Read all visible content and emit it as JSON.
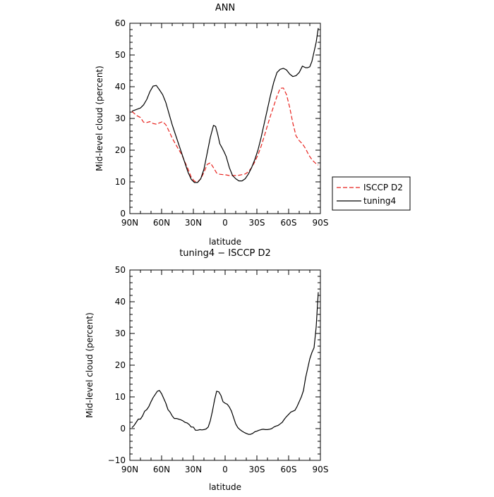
{
  "chart_data": [
    {
      "type": "line",
      "title": "ANN",
      "xlabel": "latitude",
      "ylabel": "Mid-level cloud (percent)",
      "xlim": [
        90,
        -90
      ],
      "ylim": [
        0,
        60
      ],
      "xticks": [
        90,
        60,
        30,
        0,
        -30,
        -60,
        -90
      ],
      "xtick_labels": [
        "90N",
        "60N",
        "30N",
        "0",
        "30S",
        "60S",
        "90S"
      ],
      "yticks": [
        0,
        10,
        20,
        30,
        40,
        50,
        60
      ],
      "ytick_labels": [
        "0",
        "10",
        "20",
        "30",
        "40",
        "50",
        "60"
      ],
      "grid": false,
      "legend": "right",
      "series": [
        {
          "name": "ISCCP D2",
          "color": "#e8211c",
          "dash": "dashed",
          "x": [
            88,
            84,
            80,
            77,
            74,
            71,
            68,
            65,
            62,
            59,
            56,
            53,
            50,
            47,
            44,
            41,
            38,
            35,
            32,
            29,
            26,
            23,
            20,
            17,
            14,
            11,
            8,
            5,
            2,
            -1,
            -4,
            -7,
            -10,
            -13,
            -16,
            -19,
            -22,
            -25,
            -28,
            -31,
            -34,
            -37,
            -40,
            -43,
            -46,
            -49,
            -52,
            -55,
            -58,
            -61,
            -64,
            -67,
            -70,
            -73,
            -76,
            -79,
            -82,
            -85,
            -88
          ],
          "y": [
            32.2,
            31.0,
            30.3,
            28.8,
            28.7,
            29.0,
            28.4,
            28.2,
            28.6,
            29.0,
            28.0,
            26.0,
            23.8,
            22.0,
            20.3,
            18.6,
            16.3,
            14.0,
            11.5,
            10.2,
            10.0,
            11.0,
            13.0,
            15.5,
            16.0,
            14.5,
            12.8,
            12.4,
            12.3,
            12.2,
            12.0,
            12.0,
            12.0,
            12.1,
            12.3,
            12.5,
            13.2,
            14.5,
            16.3,
            18.5,
            21.2,
            24.4,
            27.8,
            31.0,
            34.0,
            37.0,
            39.5,
            39.6,
            37.5,
            33.5,
            28.5,
            24.5,
            23.0,
            22.0,
            20.5,
            18.5,
            17.0,
            16.0,
            15.3
          ]
        },
        {
          "name": "tuning4",
          "color": "#000000",
          "dash": "solid",
          "x": [
            88,
            84,
            80,
            77,
            74,
            71,
            68,
            65,
            62,
            59,
            56,
            53,
            50,
            47,
            44,
            41,
            38,
            35,
            32,
            29,
            26,
            23,
            20,
            17,
            14,
            11,
            9,
            7,
            5,
            3,
            1,
            -1,
            -4,
            -7,
            -10,
            -13,
            -16,
            -19,
            -22,
            -25,
            -28,
            -31,
            -34,
            -37,
            -40,
            -43,
            -46,
            -49,
            -52,
            -55,
            -58,
            -61,
            -64,
            -67,
            -70,
            -73,
            -76,
            -78,
            -80,
            -82,
            -84,
            -86,
            -88
          ],
          "y": [
            32.3,
            32.8,
            33.3,
            34.3,
            36.0,
            38.5,
            40.2,
            40.4,
            39.0,
            37.5,
            35.0,
            31.5,
            28.0,
            25.0,
            22.0,
            19.0,
            16.0,
            13.0,
            10.8,
            9.8,
            9.8,
            11.0,
            14.0,
            19.0,
            24.0,
            27.8,
            27.5,
            25.0,
            22.0,
            20.8,
            19.5,
            18.0,
            14.5,
            12.0,
            11.0,
            10.3,
            10.3,
            11.0,
            12.5,
            14.5,
            17.0,
            20.0,
            24.0,
            28.5,
            33.0,
            37.5,
            41.5,
            44.5,
            45.5,
            45.8,
            45.3,
            44.0,
            43.2,
            43.5,
            44.5,
            46.5,
            46.0,
            46.0,
            46.3,
            48.0,
            51.0,
            54.0,
            58.5
          ]
        }
      ]
    },
    {
      "type": "line",
      "title": "tuning4 − ISCCP D2",
      "xlabel": "latitude",
      "ylabel": "Mid-level cloud (percent)",
      "xlim": [
        90,
        -90
      ],
      "ylim": [
        -10,
        50
      ],
      "xticks": [
        90,
        60,
        30,
        0,
        -30,
        -60,
        -90
      ],
      "xtick_labels": [
        "90N",
        "60N",
        "30N",
        "0",
        "30S",
        "60S",
        "90S"
      ],
      "yticks": [
        -10,
        0,
        10,
        20,
        30,
        40,
        50
      ],
      "ytick_labels": [
        "−10",
        "0",
        "10",
        "20",
        "30",
        "40",
        "50"
      ],
      "grid": false,
      "series": [
        {
          "color": "#000000",
          "dash": "solid",
          "x": [
            88,
            86,
            84,
            82,
            80,
            78,
            76,
            74,
            72,
            70,
            68,
            66,
            64,
            62,
            60,
            58,
            56,
            54,
            52,
            50,
            48,
            46,
            44,
            42,
            40,
            38,
            36,
            34,
            32,
            30,
            28,
            26,
            24,
            22,
            20,
            18,
            16,
            14,
            12,
            10,
            8,
            6,
            4,
            2,
            0,
            -2,
            -4,
            -6,
            -8,
            -10,
            -12,
            -14,
            -16,
            -18,
            -20,
            -22,
            -24,
            -26,
            -28,
            -30,
            -32,
            -34,
            -36,
            -38,
            -40,
            -42,
            -44,
            -46,
            -48,
            -50,
            -52,
            -54,
            -56,
            -58,
            -60,
            -62,
            -64,
            -66,
            -68,
            -70,
            -72,
            -74,
            -76,
            -78,
            -80,
            -82,
            -84,
            -86,
            -88
          ],
          "y": [
            0.3,
            1.0,
            2.0,
            3.0,
            3.0,
            4.0,
            5.5,
            6.0,
            7.0,
            8.5,
            9.8,
            10.8,
            11.8,
            12.0,
            11.0,
            9.5,
            8.0,
            6.0,
            5.2,
            4.0,
            3.2,
            3.2,
            3.0,
            2.8,
            2.5,
            2.0,
            1.8,
            1.3,
            0.5,
            0.5,
            -0.5,
            -0.5,
            -0.3,
            -0.4,
            -0.3,
            -0.1,
            0.5,
            2.5,
            5.5,
            9.0,
            11.8,
            11.6,
            10.5,
            8.5,
            8.0,
            7.7,
            6.8,
            5.5,
            3.5,
            1.5,
            0.3,
            -0.3,
            -0.8,
            -1.2,
            -1.5,
            -1.8,
            -1.8,
            -1.5,
            -1.0,
            -0.8,
            -0.5,
            -0.3,
            -0.2,
            -0.3,
            -0.3,
            -0.2,
            0.0,
            0.5,
            0.8,
            1.0,
            1.5,
            2.0,
            3.0,
            3.8,
            4.5,
            5.2,
            5.5,
            5.8,
            7.0,
            8.5,
            10.0,
            12.0,
            16.0,
            19.0,
            22.0,
            24.0,
            25.5,
            32.0,
            43.0
          ]
        }
      ]
    }
  ],
  "legend": [
    {
      "label": "ISCCP D2",
      "color": "#e8211c",
      "dash": "dashed"
    },
    {
      "label": "tuning4",
      "color": "#000000",
      "dash": "solid"
    }
  ]
}
